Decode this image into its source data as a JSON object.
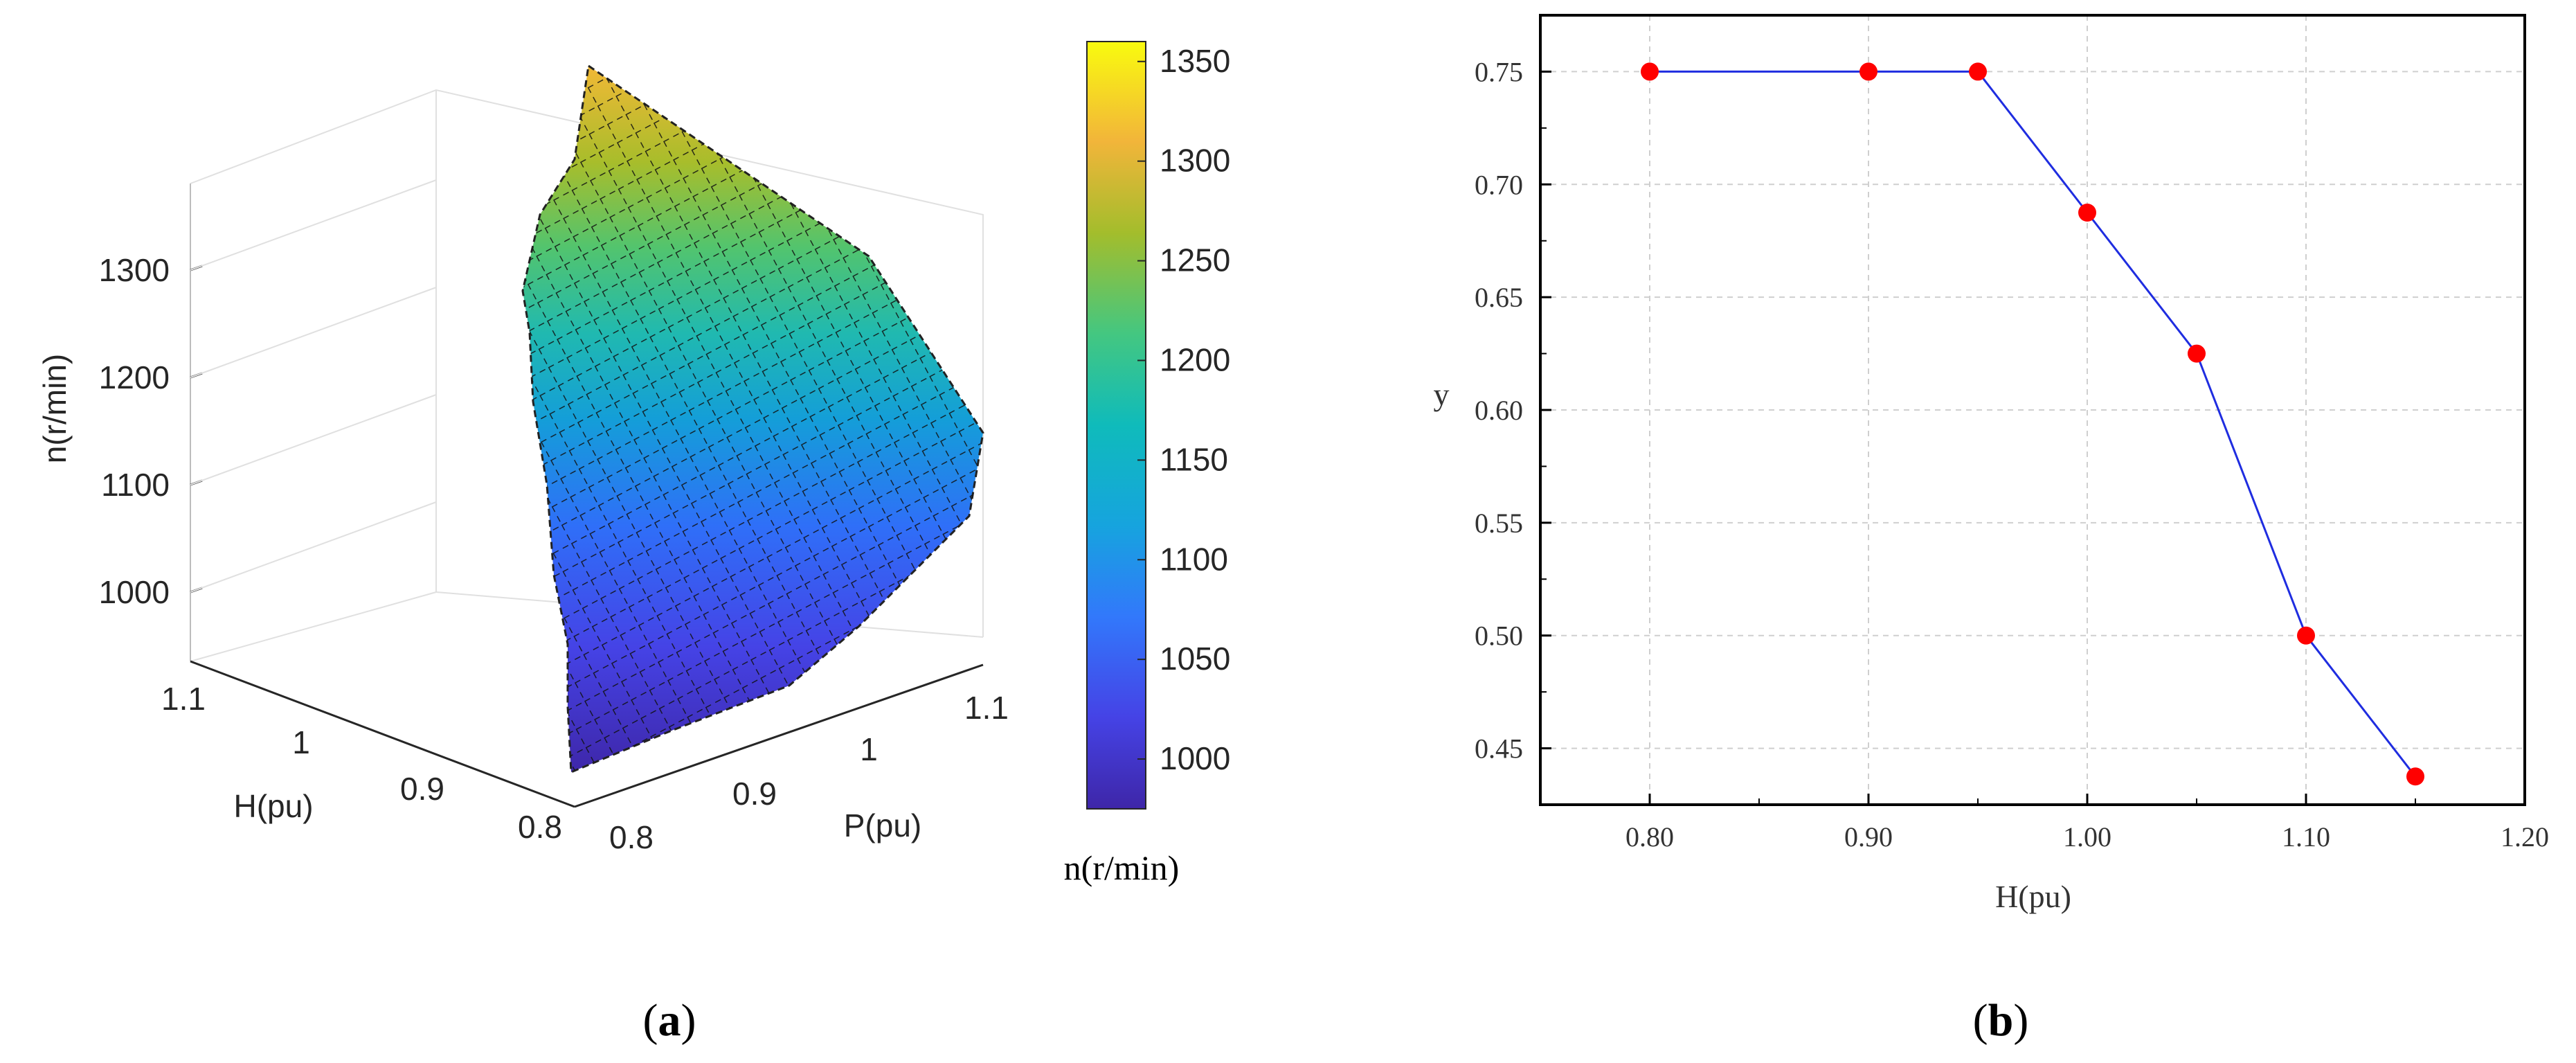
{
  "chart_data": [
    {
      "type": "surface3d",
      "panel_label": "a",
      "xlabel": "P(pu)",
      "ylabel": "H(pu)",
      "zlabel": "n(r/min)",
      "x_ticks": [
        "0.8",
        "0.9",
        "1",
        "1.1"
      ],
      "y_ticks": [
        "0.8",
        "0.9",
        "1",
        "1.1"
      ],
      "z_ticks": [
        "1000",
        "1100",
        "1200",
        "1300"
      ],
      "colorbar": {
        "label": "n(r/min)",
        "range": [
          975,
          1360
        ],
        "ticks": [
          "1000",
          "1050",
          "1100",
          "1150",
          "1200",
          "1250",
          "1300",
          "1350"
        ],
        "colormap": "parula"
      }
    },
    {
      "type": "line",
      "panel_label": "b",
      "xlabel": "H(pu)",
      "ylabel": "y",
      "xlim": [
        0.75,
        1.2
      ],
      "ylim": [
        0.425,
        0.775
      ],
      "x_ticks": [
        "0.80",
        "0.90",
        "1.00",
        "1.10",
        "1.20"
      ],
      "y_ticks": [
        "0.45",
        "0.50",
        "0.55",
        "0.60",
        "0.65",
        "0.70",
        "0.75"
      ],
      "series": [
        {
          "name": "y",
          "x": [
            0.8,
            0.9,
            0.95,
            1.0,
            1.05,
            1.1,
            1.15
          ],
          "y": [
            0.75,
            0.75,
            0.75,
            0.6875,
            0.625,
            0.5,
            0.4375
          ],
          "line_color": "#1f2de0",
          "marker_color": "#ff0000"
        }
      ],
      "grid": true
    }
  ]
}
